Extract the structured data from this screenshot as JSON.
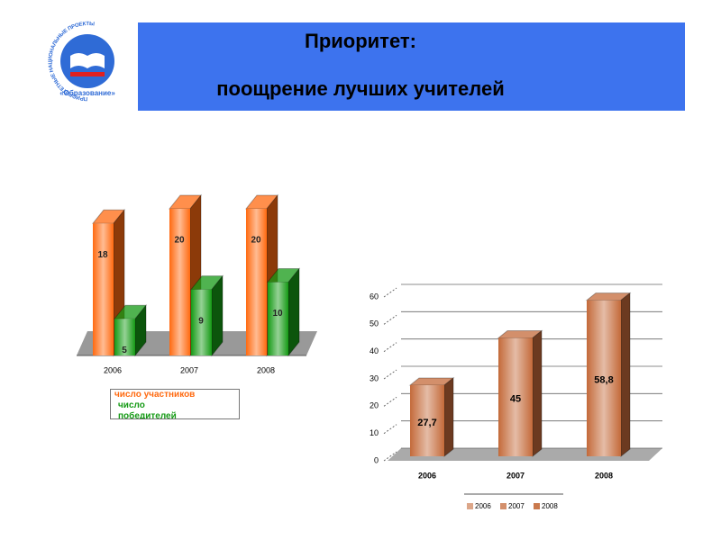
{
  "header": {
    "title": [
      "Приоритет:",
      "поощрение лучших учителей"
    ]
  },
  "logo": {
    "caption": "«Образование»",
    "ring": "ПРИОРИТЕТНЫЕ НАЦИОНАЛЬНЫЕ ПРОЕКТЫ"
  },
  "chart_data": [
    {
      "type": "bar3d",
      "categories": [
        "2006",
        "2007",
        "2008"
      ],
      "series": [
        {
          "name": "число участников",
          "color": "#ff6a10",
          "values": [
            18,
            20,
            20
          ]
        },
        {
          "name": "число победителей",
          "color": "#159a15",
          "values": [
            5,
            9,
            10
          ]
        }
      ]
    },
    {
      "type": "bar3d",
      "categories": [
        "2006",
        "2007",
        "2008"
      ],
      "values": [
        27.7,
        45,
        58.8
      ],
      "value_labels": [
        "27,7",
        "45",
        "58,8"
      ],
      "color": "#c46a3a",
      "ylim": [
        0,
        60
      ],
      "yticks": [
        0,
        10,
        20,
        30,
        40,
        50,
        60
      ],
      "grid": true
    }
  ]
}
